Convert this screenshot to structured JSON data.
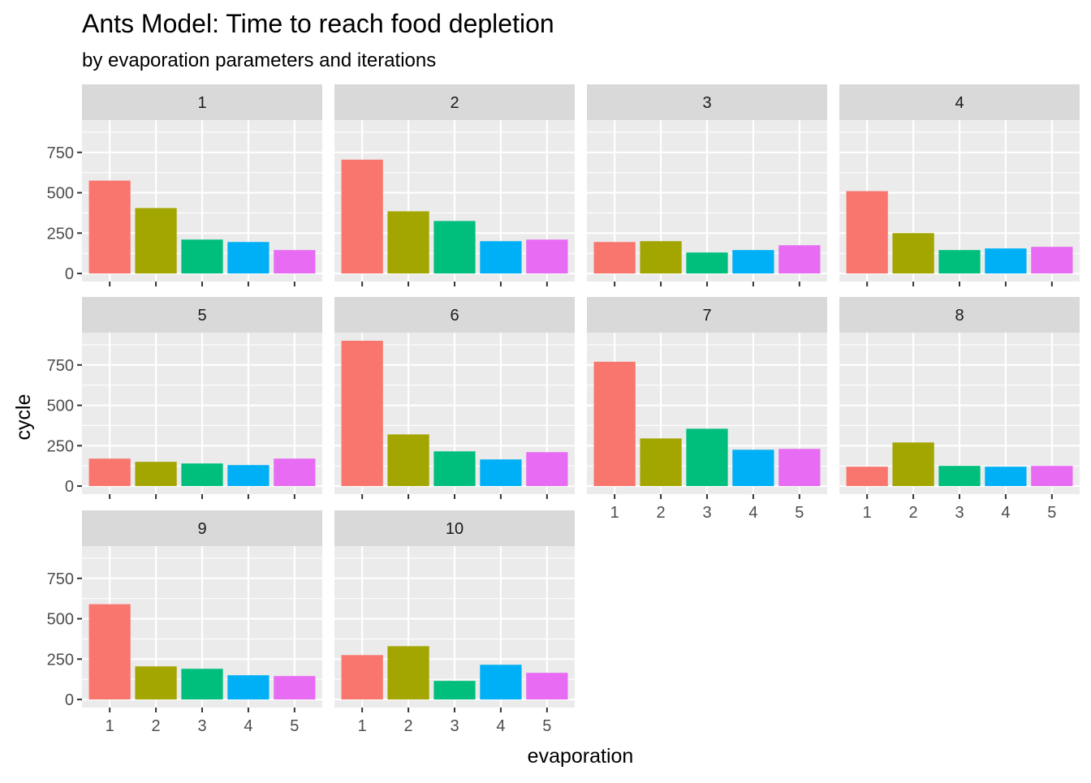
{
  "chart_data": {
    "type": "bar",
    "title": "Ants Model: Time to reach food depletion",
    "subtitle": "by evaporation parameters and iterations",
    "xlabel": "evaporation",
    "ylabel": "cycle",
    "ylim": [
      0,
      1000
    ],
    "y_ticks": [
      0,
      250,
      500,
      750
    ],
    "categories": [
      "1",
      "2",
      "3",
      "4",
      "5"
    ],
    "colors": [
      "#F8766D",
      "#A3A500",
      "#00BF7D",
      "#00B0F6",
      "#E76BF3"
    ],
    "panel_background": "#EBEBEB",
    "strip_background": "#D9D9D9",
    "grid": true,
    "legend": "none",
    "facets": [
      {
        "label": "1",
        "values": [
          575,
          405,
          210,
          195,
          145
        ]
      },
      {
        "label": "2",
        "values": [
          705,
          385,
          325,
          200,
          210
        ]
      },
      {
        "label": "3",
        "values": [
          195,
          200,
          130,
          145,
          175
        ]
      },
      {
        "label": "4",
        "values": [
          510,
          250,
          145,
          155,
          165
        ]
      },
      {
        "label": "5",
        "values": [
          170,
          150,
          140,
          130,
          170
        ]
      },
      {
        "label": "6",
        "values": [
          900,
          320,
          215,
          165,
          210
        ]
      },
      {
        "label": "7",
        "values": [
          770,
          295,
          355,
          225,
          230
        ]
      },
      {
        "label": "8",
        "values": [
          120,
          270,
          125,
          120,
          125
        ]
      },
      {
        "label": "9",
        "values": [
          590,
          205,
          190,
          150,
          145
        ]
      },
      {
        "label": "10",
        "values": [
          275,
          330,
          115,
          215,
          165
        ]
      }
    ]
  }
}
